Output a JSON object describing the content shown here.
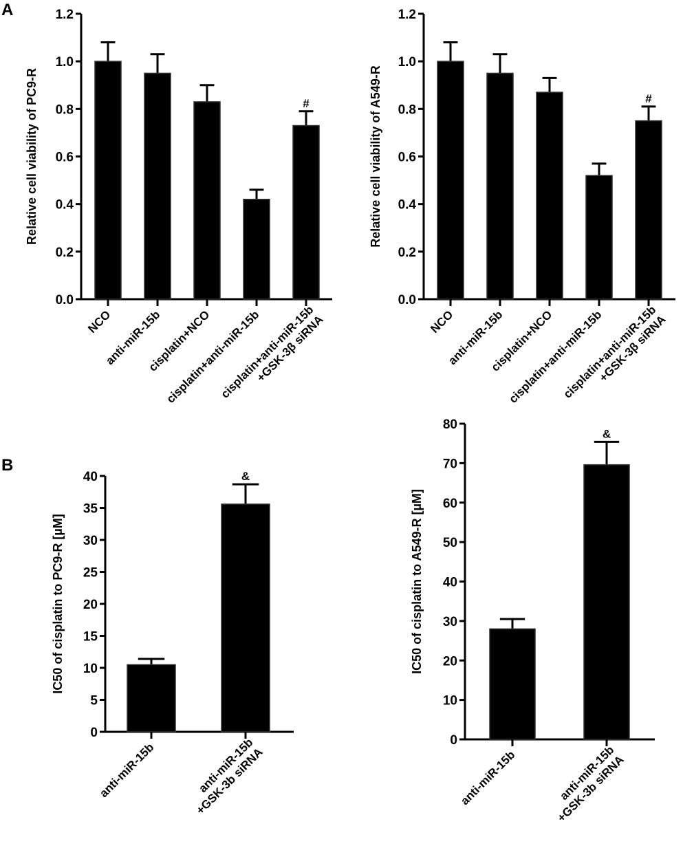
{
  "panel_labels": [
    "A",
    "B"
  ],
  "chart_data": [
    {
      "type": "bar",
      "panel": "A",
      "ylabel": "Relative cell viability of PC9-R",
      "ylim": [
        0,
        1.2
      ],
      "yticks": [
        "0.0",
        "0.2",
        "0.4",
        "0.6",
        "0.8",
        "1.0",
        "1.2"
      ],
      "categories": [
        [
          "NCO"
        ],
        [
          "anti-miR-15b"
        ],
        [
          "cisplatin+NCO"
        ],
        [
          "cisplatin+anti-miR-15b"
        ],
        [
          "cisplatin+anti-miR-15b",
          "+GSK-3β siRNA"
        ]
      ],
      "values": [
        1.0,
        0.95,
        0.83,
        0.42,
        0.73
      ],
      "errors": [
        0.08,
        0.08,
        0.07,
        0.04,
        0.06
      ],
      "annotations": [
        "",
        "",
        "",
        "",
        "#"
      ],
      "color": "#000000"
    },
    {
      "type": "bar",
      "panel": "A",
      "ylabel": "Relative cell viability of A549-R",
      "ylim": [
        0,
        1.2
      ],
      "yticks": [
        "0.0",
        "0.2",
        "0.4",
        "0.6",
        "0.8",
        "1.0",
        "1.2"
      ],
      "categories": [
        [
          "NCO"
        ],
        [
          "anti-miR-15b"
        ],
        [
          "cisplatin+NCO"
        ],
        [
          "cisplatin+anti-miR-15b"
        ],
        [
          "cisplatin+anti-miR-15b",
          "+GSK-3β siRNA"
        ]
      ],
      "values": [
        1.0,
        0.95,
        0.87,
        0.52,
        0.75
      ],
      "errors": [
        0.08,
        0.08,
        0.06,
        0.05,
        0.06
      ],
      "annotations": [
        "",
        "",
        "",
        "",
        "#"
      ],
      "color": "#000000"
    },
    {
      "type": "bar",
      "panel": "B",
      "ylabel": "IC50 of cisplatin to PC9-R [µM]",
      "ylim": [
        0,
        40
      ],
      "yticks": [
        "0",
        "5",
        "10",
        "15",
        "20",
        "25",
        "30",
        "35",
        "40"
      ],
      "categories": [
        [
          "anti-miR-15b"
        ],
        [
          "anti-miR-15b",
          "+GSK-3b siRNA"
        ]
      ],
      "values": [
        10.5,
        35.6
      ],
      "errors": [
        0.9,
        3.1
      ],
      "annotations": [
        "",
        "&"
      ],
      "color": "#000000"
    },
    {
      "type": "bar",
      "panel": "B",
      "ylabel": "IC50 of cisplatin to A549-R [µM]",
      "ylim": [
        0,
        80
      ],
      "yticks": [
        "0",
        "10",
        "20",
        "30",
        "40",
        "50",
        "60",
        "70",
        "80"
      ],
      "categories": [
        [
          "anti-miR-15b"
        ],
        [
          "anti-miR-15b",
          "+GSK-3b siRNA"
        ]
      ],
      "values": [
        28.0,
        69.6
      ],
      "errors": [
        2.5,
        5.8
      ],
      "annotations": [
        "",
        "&"
      ],
      "color": "#000000"
    }
  ]
}
